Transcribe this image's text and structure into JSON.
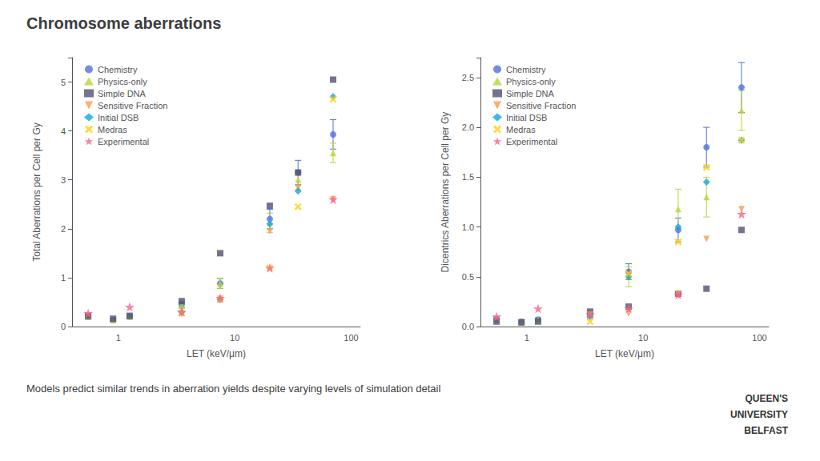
{
  "title": "Chromosome aberrations",
  "subtitle": "Models predict similar trends in aberration yields despite varying levels of simulation detail",
  "annotations": [
    "QUEEN'S",
    "UNIVERSITY",
    "BELFAST"
  ],
  "chart_data": [
    {
      "type": "scatter",
      "xlabel": "LET (keV/μm)",
      "ylabel": "Total Aberrations per Cell per Gy",
      "log": "x",
      "grid": false,
      "legend": "upper left",
      "xlim": [
        0.4,
        120
      ],
      "xticks": [
        1,
        10,
        100
      ],
      "ylim": [
        0,
        5.5
      ],
      "yticks": [
        0,
        1,
        2,
        3,
        4,
        5
      ],
      "series": [
        {
          "name": "Chemistry",
          "marker": "circle",
          "x": [
            0.55,
            0.9,
            1.25,
            3.5,
            7.5,
            20,
            35,
            70
          ],
          "values": [
            0.2,
            0.13,
            0.2,
            0.45,
            0.88,
            2.2,
            3.15,
            3.93
          ],
          "yerr": [
            0.05,
            0.03,
            0.04,
            0.06,
            0.1,
            0.2,
            0.25,
            0.3
          ]
        },
        {
          "name": "Physics-only",
          "marker": "triangle",
          "x": [
            0.55,
            0.9,
            1.25,
            3.5,
            7.5,
            20,
            35,
            70
          ],
          "values": [
            0.2,
            0.13,
            0.2,
            0.43,
            0.88,
            2.12,
            3.0,
            3.55
          ],
          "yerr": [
            0.04,
            0.03,
            0.04,
            0.06,
            0.1,
            0.2,
            0.2,
            0.2
          ]
        },
        {
          "name": "Simple DNA",
          "marker": "square",
          "x": [
            0.55,
            0.9,
            1.25,
            3.5,
            7.5,
            20,
            35,
            70
          ],
          "values": [
            0.22,
            0.16,
            0.22,
            0.52,
            1.5,
            2.47,
            3.15,
            5.05
          ],
          "yerr": [
            null,
            null,
            null,
            null,
            null,
            null,
            null,
            null
          ]
        },
        {
          "name": "Sensitive Fraction",
          "marker": "triangle-down",
          "x": [
            3.5,
            7.5,
            20,
            35,
            70
          ],
          "values": [
            0.25,
            0.57,
            1.95,
            2.83,
            2.6
          ],
          "yerr": [
            null,
            null,
            null,
            null,
            null
          ]
        },
        {
          "name": "Initial DSB",
          "marker": "diamond",
          "x": [
            3.5,
            7.5,
            20,
            35,
            70
          ],
          "values": [
            0.3,
            0.55,
            2.1,
            2.77,
            4.7
          ],
          "yerr": [
            null,
            null,
            null,
            null,
            null
          ]
        },
        {
          "name": "Medras",
          "marker": "x",
          "x": [
            3.5,
            7.5,
            20,
            35,
            70
          ],
          "values": [
            0.28,
            0.55,
            1.2,
            2.45,
            4.65
          ],
          "yerr": [
            null,
            null,
            null,
            null,
            null
          ]
        },
        {
          "name": "Experimental",
          "marker": "star",
          "x": [
            0.55,
            1.25,
            3.5,
            7.5,
            20,
            70
          ],
          "values": [
            0.27,
            0.4,
            0.3,
            0.58,
            1.2,
            2.6
          ],
          "yerr": [
            null,
            null,
            null,
            null,
            null,
            null
          ]
        }
      ]
    },
    {
      "type": "scatter",
      "xlabel": "LET (keV/μm)",
      "ylabel": "Dicentrics Aberrations per Cell per Gy",
      "log": "x",
      "grid": false,
      "legend": "upper left",
      "xlim": [
        0.4,
        120
      ],
      "xticks": [
        1,
        10,
        100
      ],
      "ylim": [
        0,
        2.7
      ],
      "yticks": [
        {
          "value": 0,
          "label": "0.0"
        },
        0.5,
        {
          "value": 1,
          "label": "1.0"
        },
        1.5,
        {
          "value": 2,
          "label": "2.0"
        },
        2.5
      ],
      "series": [
        {
          "name": "Chemistry",
          "marker": "circle",
          "x": [
            0.55,
            0.9,
            1.25,
            3.5,
            7.5,
            20,
            35,
            70
          ],
          "values": [
            0.07,
            0.05,
            0.07,
            0.12,
            0.55,
            0.97,
            1.8,
            2.4
          ],
          "yerr": [
            0.02,
            0.02,
            0.02,
            0.03,
            0.08,
            0.12,
            0.2,
            0.25
          ]
        },
        {
          "name": "Physics-only",
          "marker": "triangle",
          "x": [
            0.55,
            0.9,
            1.25,
            3.5,
            7.5,
            20,
            35,
            70
          ],
          "values": [
            0.08,
            0.05,
            0.07,
            0.12,
            0.5,
            1.18,
            1.3,
            2.17
          ],
          "yerr": [
            0.02,
            0.02,
            0.02,
            0.03,
            0.1,
            0.2,
            0.2,
            0.2
          ]
        },
        {
          "name": "Simple DNA",
          "marker": "square",
          "x": [
            0.55,
            0.9,
            1.25,
            3.5,
            7.5,
            20,
            35,
            70
          ],
          "values": [
            0.05,
            0.04,
            0.05,
            0.15,
            0.2,
            0.33,
            0.38,
            0.97
          ],
          "yerr": [
            null,
            null,
            null,
            null,
            null,
            null,
            null,
            null
          ]
        },
        {
          "name": "Sensitive Fraction",
          "marker": "triangle-down",
          "x": [
            3.5,
            7.5,
            20,
            35,
            70
          ],
          "values": [
            0.12,
            0.13,
            0.33,
            0.88,
            1.18
          ],
          "yerr": [
            null,
            null,
            null,
            null,
            null
          ]
        },
        {
          "name": "Initial DSB",
          "marker": "diamond",
          "x": [
            3.5,
            7.5,
            20,
            35,
            70
          ],
          "values": [
            0.1,
            0.5,
            1.0,
            1.45,
            1.87
          ],
          "yerr": [
            null,
            null,
            null,
            null,
            null
          ]
        },
        {
          "name": "Medras",
          "marker": "x",
          "x": [
            3.5,
            7.5,
            20,
            35,
            70
          ],
          "values": [
            0.05,
            0.53,
            0.85,
            1.6,
            1.87
          ],
          "yerr": [
            null,
            null,
            null,
            null,
            null
          ]
        },
        {
          "name": "Experimental",
          "marker": "star",
          "x": [
            0.55,
            1.25,
            3.5,
            7.5,
            20,
            70
          ],
          "values": [
            0.1,
            0.18,
            0.12,
            0.18,
            0.32,
            1.13
          ],
          "yerr": [
            null,
            null,
            null,
            null,
            null,
            null
          ]
        }
      ]
    }
  ]
}
